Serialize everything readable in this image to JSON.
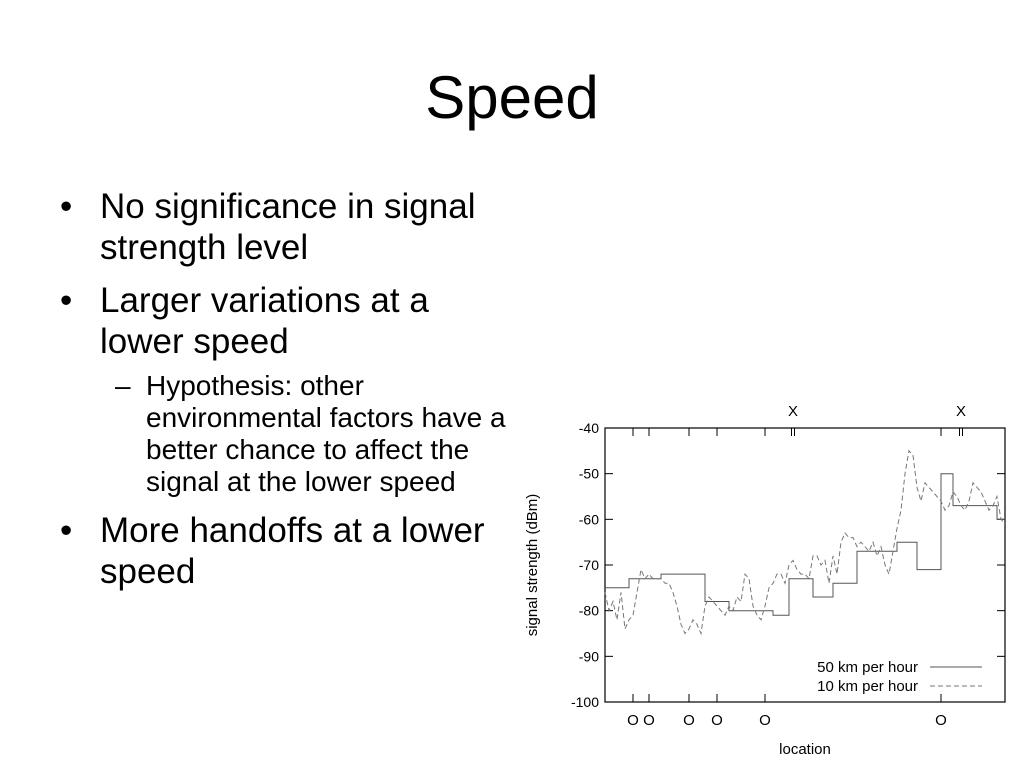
{
  "slide": {
    "title": "Speed",
    "bullets": [
      {
        "text": "No significance in signal strength level"
      },
      {
        "text": "Larger variations at a lower speed",
        "sub": "Hypothesis: other environmental factors have a better chance to affect the signal at the lower speed"
      },
      {
        "text": "More handoffs at a lower speed"
      }
    ]
  },
  "chart_data": {
    "type": "line",
    "xlabel": "location",
    "ylabel": "signal strength (dBm)",
    "ylim": [
      -100,
      -40
    ],
    "yticks": [
      -100,
      -90,
      -80,
      -70,
      -60,
      -50,
      -40
    ],
    "yticklabels": [
      "-100",
      "-90",
      "-80",
      "-70",
      "-60",
      "-50",
      "-40"
    ],
    "xlim": [
      0,
      100
    ],
    "legend_position": "bottom-right",
    "series": [
      {
        "name": "50 km per hour",
        "style": "solid",
        "color": "#555555",
        "x": [
          0,
          6,
          6,
          14,
          14,
          25,
          25,
          31,
          31,
          42,
          42,
          46,
          46,
          52,
          52,
          57,
          57,
          63,
          63,
          73,
          73,
          78,
          78,
          84,
          84,
          87,
          87,
          91,
          91,
          98,
          98,
          100
        ],
        "y": [
          -75,
          -75,
          -73,
          -73,
          -72,
          -72,
          -78,
          -78,
          -80,
          -80,
          -81,
          -81,
          -73,
          -73,
          -77,
          -77,
          -74,
          -74,
          -67,
          -67,
          -65,
          -65,
          -71,
          -71,
          -50,
          -50,
          -57,
          -57,
          -57,
          -57,
          -60,
          -60
        ]
      },
      {
        "name": "10 km per hour",
        "style": "dashed",
        "color": "#777777",
        "x": [
          0,
          1,
          2,
          3,
          4,
          5,
          6,
          7,
          8,
          9,
          10,
          11,
          12,
          13,
          14,
          15,
          16,
          17,
          18,
          19,
          20,
          21,
          22,
          23,
          24,
          25,
          26,
          27,
          28,
          29,
          30,
          31,
          32,
          33,
          34,
          35,
          36,
          37,
          38,
          39,
          40,
          41,
          42,
          43,
          44,
          45,
          46,
          47,
          48,
          49,
          50,
          51,
          52,
          53,
          54,
          55,
          56,
          57,
          58,
          59,
          60,
          61,
          62,
          63,
          64,
          65,
          66,
          67,
          68,
          69,
          70,
          71,
          72,
          73,
          74,
          75,
          76,
          77,
          78,
          79,
          80,
          81,
          82,
          83,
          84,
          85,
          86,
          87,
          88,
          89,
          90,
          91,
          92,
          93,
          94,
          95,
          96,
          97,
          98,
          99,
          100
        ],
        "y": [
          -76,
          -80,
          -78,
          -82,
          -76,
          -84,
          -82,
          -81,
          -76,
          -71,
          -73,
          -72,
          -73,
          -73,
          -73,
          -74,
          -74,
          -76,
          -79,
          -83,
          -85,
          -84,
          -82,
          -83,
          -85,
          -79,
          -77,
          -78,
          -79,
          -80,
          -81,
          -79,
          -80,
          -77,
          -78,
          -72,
          -73,
          -79,
          -81,
          -82,
          -79,
          -75,
          -74,
          -72,
          -72,
          -74,
          -70,
          -69,
          -71,
          -72,
          -72,
          -73,
          -68,
          -68,
          -70,
          -69,
          -74,
          -68,
          -72,
          -65,
          -63,
          -64,
          -64,
          -66,
          -65,
          -66,
          -67,
          -65,
          -68,
          -66,
          -70,
          -72,
          -67,
          -62,
          -58,
          -50,
          -45,
          -46,
          -53,
          -56,
          -52,
          -53,
          -54,
          -55,
          -56,
          -58,
          -57,
          -54,
          -55,
          -57,
          -58,
          -56,
          -52,
          -53,
          -54,
          -56,
          -58,
          -57,
          -55,
          -60,
          -61
        ]
      }
    ],
    "markers": {
      "top_x_labels": [
        {
          "x": 47,
          "label": "X"
        },
        {
          "x": 89,
          "label": "X"
        }
      ],
      "bottom_o_labels": [
        {
          "x": 7,
          "label": "O"
        },
        {
          "x": 11,
          "label": "O"
        },
        {
          "x": 21,
          "label": "O"
        },
        {
          "x": 28,
          "label": "O"
        },
        {
          "x": 40,
          "label": "O"
        },
        {
          "x": 84,
          "label": "O"
        }
      ]
    }
  }
}
